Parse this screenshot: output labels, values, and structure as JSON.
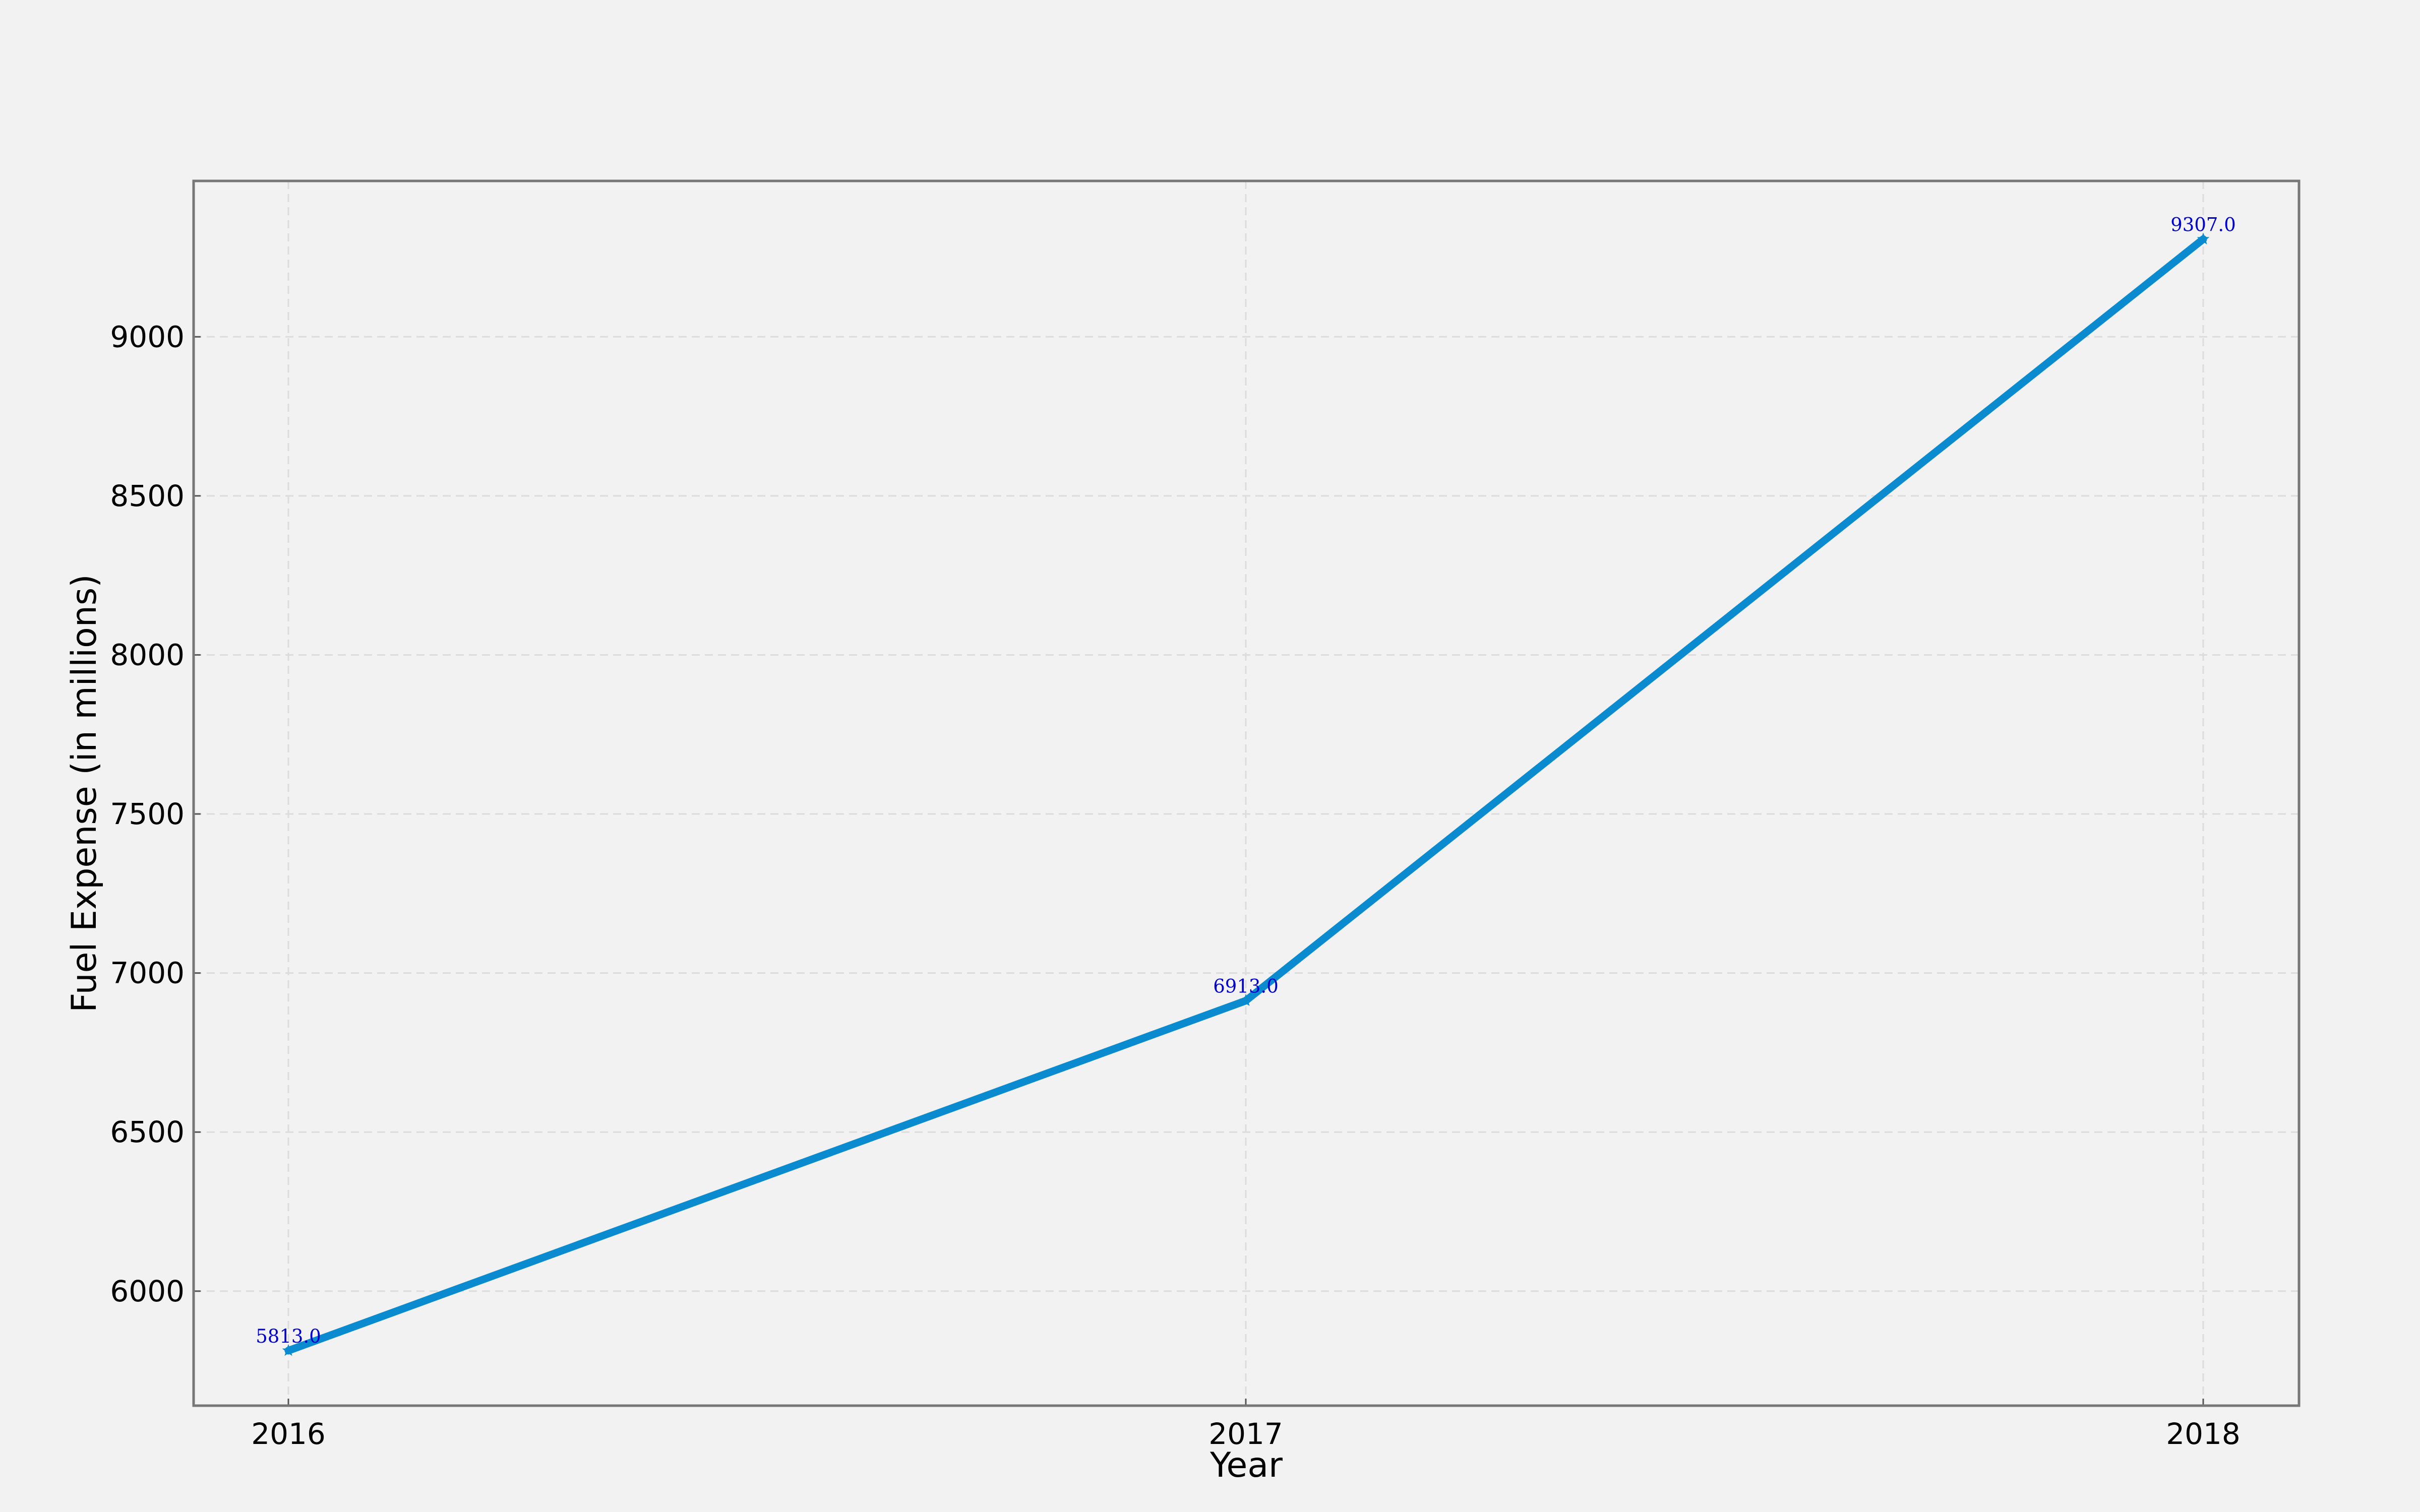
{
  "chart_data": {
    "type": "line",
    "categories": [
      "2016",
      "2017",
      "2018"
    ],
    "series": [
      {
        "values": [
          5813.0,
          6913.0,
          9307.0
        ],
        "data_labels": [
          "5813.0",
          "6913.0",
          "9307.0"
        ]
      }
    ],
    "xlabel": "Year",
    "ylabel": "Fuel Expense (in millions)",
    "ylim": [
      5640,
      9490
    ],
    "yticks": [
      6000,
      6500,
      7000,
      7500,
      8000,
      8500,
      9000
    ],
    "ytick_labels": [
      "6000",
      "6500",
      "7000",
      "7500",
      "8000",
      "8500",
      "9000"
    ],
    "grid": true,
    "marker": "star",
    "line_color": "#0a8bd0",
    "label_color": "#0000cc",
    "background_color": "#f2f2f2"
  }
}
